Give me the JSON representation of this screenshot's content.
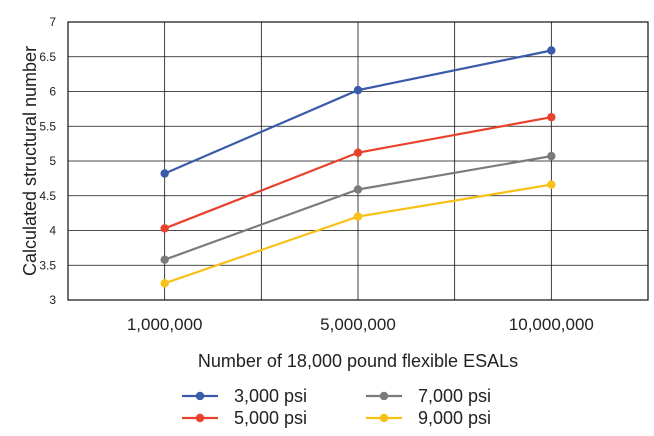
{
  "chart_data": {
    "type": "line",
    "categories": [
      "1,000,000",
      "5,000,000",
      "10,000,000"
    ],
    "series": [
      {
        "name": "3,000 psi",
        "values": [
          4.82,
          6.02,
          6.59
        ],
        "color": "#3a5ba9"
      },
      {
        "name": "5,000 psi",
        "values": [
          4.03,
          5.12,
          5.63
        ],
        "color": "#e8412c"
      },
      {
        "name": "7,000 psi",
        "values": [
          3.58,
          4.59,
          5.07
        ],
        "color": "#7b7b7b"
      },
      {
        "name": "9,000 psi",
        "values": [
          3.24,
          4.2,
          4.66
        ],
        "color": "#f7c11a"
      }
    ],
    "title": "",
    "xlabel": "Number of 18,000 pound flexible ESALs",
    "ylabel": "Calculated structural number",
    "ylim": [
      3,
      7
    ],
    "yticks": [
      "3",
      "3.5",
      "4",
      "4.5",
      "5",
      "5.5",
      "6",
      "6.5",
      "7"
    ],
    "grid": true,
    "legend_position": "bottom"
  }
}
